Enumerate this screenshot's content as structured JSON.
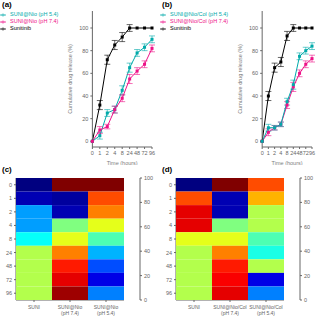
{
  "chart_data": [
    {
      "type": "line",
      "title": "(a)",
      "xlabel": "Time (hours)",
      "ylabel": "Cumulative drug release (%)",
      "categories": [
        "0",
        "1",
        "2",
        "4",
        "8",
        "24",
        "48",
        "72",
        "96"
      ],
      "series": [
        {
          "name": "Sunitinib",
          "color": "#000000",
          "marker": "square",
          "values": [
            0,
            32,
            72,
            85,
            92,
            100,
            100,
            100,
            100
          ],
          "errors": [
            0,
            4,
            4,
            4,
            4,
            3,
            0,
            0,
            0
          ]
        },
        {
          "name": "SUNI@Nio (pH 5.4)",
          "color": "#00AAAA",
          "marker": "square",
          "values": [
            0,
            5,
            25,
            28,
            45,
            65,
            78,
            83,
            90
          ],
          "errors": [
            0,
            3,
            3,
            3,
            4,
            4,
            3,
            3,
            3
          ]
        },
        {
          "name": "SUNI@Nio (pH 7.4)",
          "color": "#EE1188",
          "marker": "square",
          "values": [
            0,
            10,
            13,
            28,
            38,
            55,
            62,
            68,
            82
          ],
          "errors": [
            0,
            3,
            2,
            3,
            3,
            4,
            3,
            3,
            3
          ]
        }
      ],
      "ylim": [
        -5,
        115
      ],
      "yticks": [
        0,
        20,
        40,
        60,
        80,
        100
      ],
      "legend": "upper left",
      "grid": false
    },
    {
      "type": "line",
      "title": "(b)",
      "xlabel": "Time (hours)",
      "ylabel": "Cumulative drug release (%)",
      "categories": [
        "0",
        "1",
        "2",
        "4",
        "8",
        "24",
        "48",
        "72",
        "96"
      ],
      "series": [
        {
          "name": "Sunitinib",
          "color": "#000000",
          "marker": "square",
          "values": [
            0,
            40,
            65,
            70,
            93,
            100,
            100,
            100,
            100
          ],
          "errors": [
            0,
            4,
            4,
            4,
            4,
            3,
            0,
            0,
            0
          ]
        },
        {
          "name": "SUNI@Nio/Col (pH 7.4)",
          "color": "#EE1188",
          "marker": "square",
          "values": [
            0,
            8,
            12,
            15,
            32,
            48,
            60,
            68,
            73
          ],
          "errors": [
            0,
            3,
            2,
            2,
            3,
            4,
            3,
            3,
            3
          ]
        },
        {
          "name": "SUNI@Nio/Col (pH 5.4)",
          "color": "#00AAAA",
          "marker": "square",
          "values": [
            0,
            12,
            12,
            15,
            35,
            50,
            75,
            80,
            84
          ],
          "errors": [
            0,
            3,
            2,
            2,
            3,
            4,
            3,
            3,
            3
          ]
        }
      ],
      "ylim": [
        -5,
        115
      ],
      "yticks": [
        0,
        20,
        40,
        60,
        80,
        100
      ],
      "legend": "upper left",
      "grid": false
    },
    {
      "type": "heatmap",
      "title": "(c)",
      "x_categories": [
        "SUNI",
        "SUNI@Nio\n(pH 7.4)",
        "SUNI@Nio\n(pH 5.4)"
      ],
      "y_categories": [
        "0",
        "1",
        "2",
        "4",
        "8",
        "24",
        "48",
        "72",
        "96"
      ],
      "cells": [
        [
          0,
          100,
          100
        ],
        [
          5,
          3,
          80
        ],
        [
          28,
          5,
          75
        ],
        [
          28,
          50,
          60
        ],
        [
          38,
          60,
          45
        ],
        [
          55,
          75,
          30
        ],
        [
          55,
          85,
          20
        ],
        [
          55,
          90,
          10
        ],
        [
          55,
          97,
          25
        ]
      ],
      "colorbar_lim": [
        0,
        100
      ],
      "colorbar_ticks": [
        0,
        20,
        40,
        60,
        80,
        100
      ]
    },
    {
      "type": "heatmap",
      "title": "(d)",
      "x_categories": [
        "SUNI",
        "SUNI@Nio/Col\n(pH 7.4)",
        "SUNI@Nio/Col\n(pH 5.4)"
      ],
      "y_categories": [
        "0",
        "1",
        "2",
        "4",
        "8",
        "24",
        "48",
        "72",
        "96"
      ],
      "cells": [
        [
          0,
          100,
          80
        ],
        [
          80,
          5,
          70
        ],
        [
          90,
          5,
          55
        ],
        [
          90,
          50,
          55
        ],
        [
          60,
          60,
          45
        ],
        [
          55,
          75,
          40
        ],
        [
          55,
          85,
          55
        ],
        [
          55,
          88,
          10
        ],
        [
          55,
          90,
          25
        ]
      ],
      "colorbar_lim": [
        0,
        100
      ],
      "colorbar_ticks": [
        0,
        20,
        40,
        60,
        80,
        100
      ]
    }
  ]
}
